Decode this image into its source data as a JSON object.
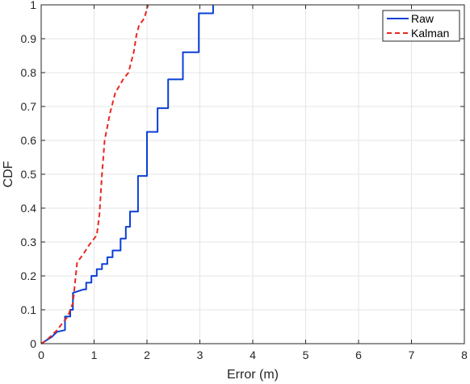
{
  "chart_data": {
    "type": "line",
    "title": "",
    "xlabel": "Error (m)",
    "ylabel": "CDF",
    "xlim": [
      0,
      8
    ],
    "ylim": [
      0,
      1
    ],
    "xticks": [
      "0",
      "1",
      "2",
      "3",
      "4",
      "5",
      "6",
      "7",
      "8"
    ],
    "yticks": [
      "0",
      "0.1",
      "0.2",
      "0.3",
      "0.4",
      "0.5",
      "0.6",
      "0.7",
      "0.8",
      "0.9",
      "1"
    ],
    "grid": true,
    "legend_position": "top-right",
    "series": [
      {
        "name": "Raw",
        "color": "#0b3fd6",
        "style": "solid",
        "points": [
          [
            0.0,
            0.0
          ],
          [
            0.1,
            0.01
          ],
          [
            0.2,
            0.02
          ],
          [
            0.3,
            0.035
          ],
          [
            0.45,
            0.04
          ],
          [
            0.45,
            0.08
          ],
          [
            0.55,
            0.08
          ],
          [
            0.55,
            0.1
          ],
          [
            0.6,
            0.1
          ],
          [
            0.6,
            0.15
          ],
          [
            0.7,
            0.155
          ],
          [
            0.8,
            0.16
          ],
          [
            0.85,
            0.16
          ],
          [
            0.85,
            0.18
          ],
          [
            0.95,
            0.18
          ],
          [
            0.95,
            0.2
          ],
          [
            1.05,
            0.2
          ],
          [
            1.05,
            0.22
          ],
          [
            1.15,
            0.22
          ],
          [
            1.15,
            0.235
          ],
          [
            1.25,
            0.235
          ],
          [
            1.25,
            0.255
          ],
          [
            1.35,
            0.255
          ],
          [
            1.35,
            0.275
          ],
          [
            1.5,
            0.275
          ],
          [
            1.5,
            0.31
          ],
          [
            1.6,
            0.31
          ],
          [
            1.6,
            0.345
          ],
          [
            1.68,
            0.345
          ],
          [
            1.68,
            0.39
          ],
          [
            1.83,
            0.39
          ],
          [
            1.83,
            0.495
          ],
          [
            2.0,
            0.495
          ],
          [
            2.0,
            0.625
          ],
          [
            2.2,
            0.625
          ],
          [
            2.2,
            0.695
          ],
          [
            2.4,
            0.695
          ],
          [
            2.4,
            0.78
          ],
          [
            2.68,
            0.78
          ],
          [
            2.68,
            0.86
          ],
          [
            2.98,
            0.86
          ],
          [
            2.98,
            0.975
          ],
          [
            3.25,
            0.975
          ],
          [
            3.25,
            1.0
          ]
        ]
      },
      {
        "name": "Kalman",
        "color": "#e8281e",
        "style": "dashed",
        "points": [
          [
            0.0,
            0.0
          ],
          [
            0.1,
            0.01
          ],
          [
            0.2,
            0.025
          ],
          [
            0.3,
            0.04
          ],
          [
            0.4,
            0.06
          ],
          [
            0.5,
            0.08
          ],
          [
            0.6,
            0.12
          ],
          [
            0.68,
            0.24
          ],
          [
            0.8,
            0.265
          ],
          [
            0.9,
            0.29
          ],
          [
            1.0,
            0.31
          ],
          [
            1.05,
            0.32
          ],
          [
            1.1,
            0.38
          ],
          [
            1.15,
            0.5
          ],
          [
            1.2,
            0.6
          ],
          [
            1.3,
            0.68
          ],
          [
            1.4,
            0.74
          ],
          [
            1.55,
            0.78
          ],
          [
            1.65,
            0.8
          ],
          [
            1.75,
            0.86
          ],
          [
            1.8,
            0.91
          ],
          [
            1.85,
            0.94
          ],
          [
            1.95,
            0.96
          ],
          [
            2.02,
            1.0
          ]
        ]
      }
    ]
  }
}
